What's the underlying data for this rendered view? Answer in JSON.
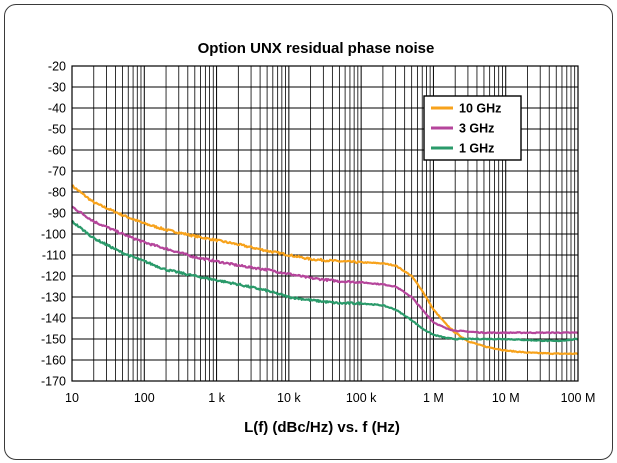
{
  "chart_data": {
    "type": "line",
    "title": "Option UNX residual phase noise",
    "xlabel": "L(f) (dBc/Hz) vs. f (Hz)",
    "ylabel": "",
    "x_scale": "log",
    "xlim": [
      10,
      100000000
    ],
    "ylim": [
      -170,
      -20
    ],
    "x_ticks": [
      10,
      100,
      1000,
      10000,
      100000,
      1000000,
      10000000,
      100000000
    ],
    "x_tick_labels": [
      "10",
      "100",
      "1 k",
      "10 k",
      "100 k",
      "1 M",
      "10 M",
      "100 M"
    ],
    "y_ticks": [
      -20,
      -30,
      -40,
      -50,
      -60,
      -70,
      -80,
      -90,
      -100,
      -110,
      -120,
      -130,
      -140,
      -150,
      -160,
      -170
    ],
    "y_tick_labels": [
      "-20",
      "-30",
      "-40",
      "-50",
      "-60",
      "-70",
      "-80",
      "-90",
      "-100",
      "-110",
      "-120",
      "-130",
      "-140",
      "-150",
      "-160",
      "-170"
    ],
    "grid": true,
    "legend_position": "top-right",
    "series": [
      {
        "name": "10 GHz",
        "color": "#f7a21b",
        "x": [
          10,
          20,
          50,
          100,
          200,
          500,
          1000,
          2000,
          5000,
          10000,
          20000,
          50000,
          100000,
          200000,
          300000,
          500000,
          700000,
          1000000,
          1500000,
          2000000,
          3000000,
          5000000,
          10000000,
          20000000,
          50000000,
          100000000
        ],
        "y": [
          -77,
          -85,
          -91,
          -95,
          -98,
          -101,
          -103,
          -105,
          -108,
          -110,
          -112,
          -113,
          -113.5,
          -114,
          -115,
          -120,
          -127,
          -136,
          -143,
          -147,
          -151,
          -153.5,
          -155.5,
          -156.5,
          -157,
          -157
        ]
      },
      {
        "name": "3 GHz",
        "color": "#b5459b",
        "x": [
          10,
          20,
          50,
          100,
          200,
          500,
          1000,
          2000,
          5000,
          10000,
          20000,
          50000,
          100000,
          200000,
          300000,
          500000,
          700000,
          1000000,
          1500000,
          2000000,
          3000000,
          5000000,
          10000000,
          20000000,
          50000000,
          100000000
        ],
        "y": [
          -87,
          -94,
          -100,
          -104,
          -107,
          -111,
          -113,
          -115,
          -117,
          -119,
          -121,
          -122.5,
          -123,
          -124,
          -125,
          -130,
          -136,
          -142,
          -145,
          -146,
          -146.5,
          -147,
          -147,
          -147,
          -147,
          -147
        ]
      },
      {
        "name": "1 GHz",
        "color": "#2a9a6a",
        "x": [
          10,
          20,
          50,
          100,
          200,
          500,
          1000,
          2000,
          5000,
          10000,
          20000,
          50000,
          100000,
          200000,
          300000,
          500000,
          700000,
          1000000,
          1500000,
          2000000,
          3000000,
          5000000,
          10000000,
          20000000,
          50000000,
          100000000
        ],
        "y": [
          -94,
          -102,
          -109,
          -113,
          -117,
          -120,
          -122,
          -124,
          -127,
          -130,
          -131.5,
          -133,
          -133,
          -134,
          -136,
          -141,
          -145,
          -148,
          -149.5,
          -150,
          -150,
          -150,
          -150,
          -150.5,
          -151,
          -150
        ]
      }
    ]
  }
}
